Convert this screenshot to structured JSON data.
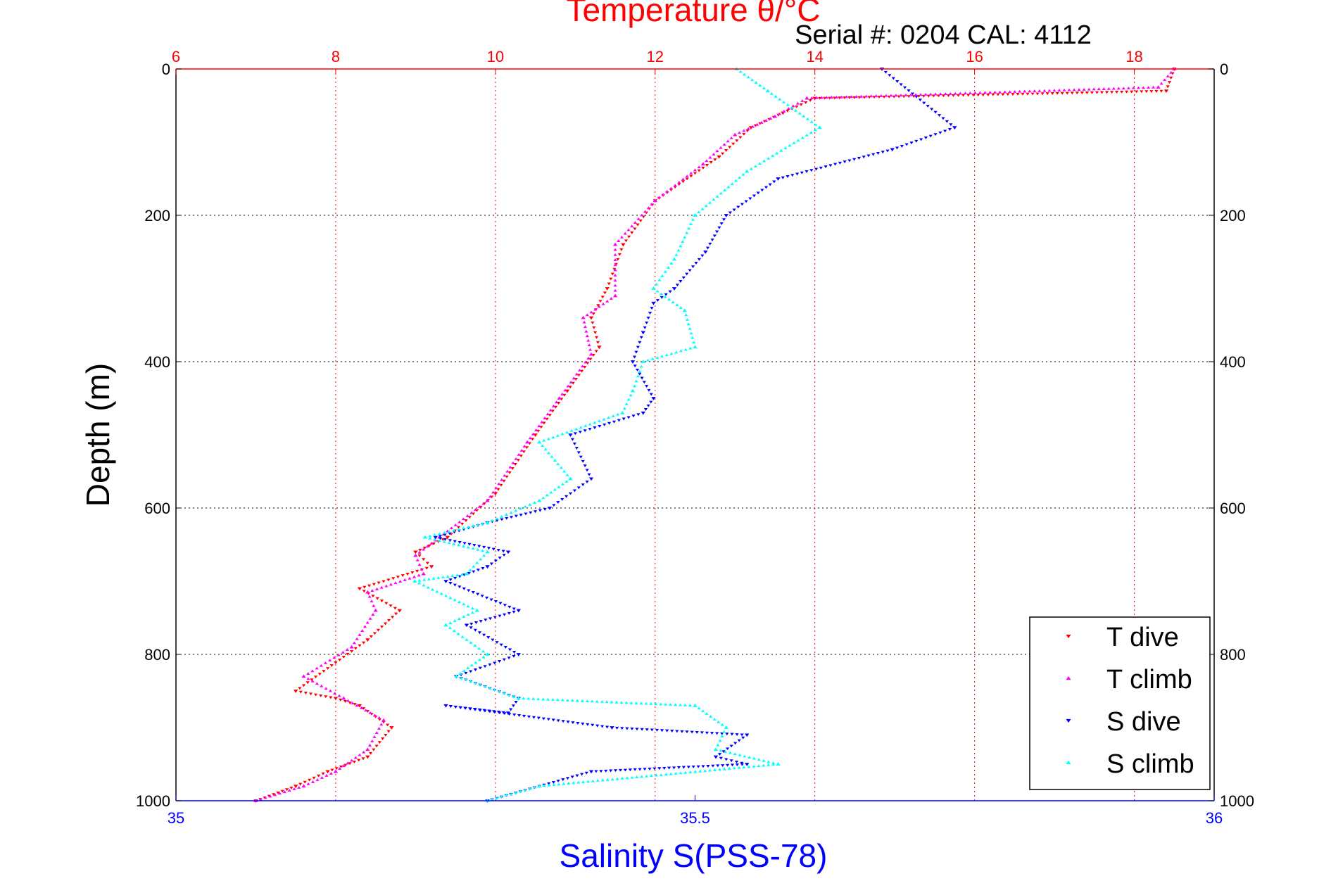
{
  "chart_data": {
    "type": "scatter",
    "title": "Temperature θ/°C",
    "subtitle": "Serial #: 0204  CAL: 4112",
    "ylabel": "Depth (m)",
    "xlabel": "Salinity S(PSS-78)",
    "y_axis": {
      "range": [
        0,
        1000
      ],
      "reversed": true,
      "ticks": [
        0,
        200,
        400,
        600,
        800,
        1000
      ],
      "grid": true
    },
    "x_top_axis": {
      "label": "Temperature θ/°C",
      "range": [
        6,
        19
      ],
      "ticks": [
        6,
        8,
        10,
        12,
        14,
        16,
        18
      ],
      "grid": true,
      "color": "#ff0000"
    },
    "x_bottom_axis": {
      "label": "Salinity S(PSS-78)",
      "range": [
        35,
        36
      ],
      "ticks": [
        35,
        35.5,
        36
      ],
      "color": "#0000ff"
    },
    "legend": {
      "placement": "bottom-right"
    },
    "series": [
      {
        "name": "T dive",
        "axis": "temperature",
        "color": "#ff0000",
        "marker": "triangle-down",
        "x": [
          18.5,
          18.4,
          14.0,
          13.6,
          13.2,
          12.8,
          12.0,
          11.6,
          11.4,
          11.2,
          11.3,
          10.9,
          10.5,
          10.0,
          9.4,
          9.0,
          9.2,
          8.3,
          8.8,
          8.4,
          7.5,
          8.0,
          8.3,
          8.7,
          8.4,
          7.9,
          7.5,
          7.0
        ],
        "y": [
          0,
          30,
          40,
          60,
          80,
          120,
          180,
          240,
          300,
          340,
          380,
          440,
          500,
          580,
          640,
          660,
          680,
          710,
          740,
          780,
          850,
          860,
          870,
          900,
          940,
          960,
          980,
          1000
        ]
      },
      {
        "name": "T climb",
        "axis": "temperature",
        "color": "#ff00ff",
        "marker": "triangle-up",
        "x": [
          18.5,
          18.3,
          13.9,
          13.5,
          13.0,
          12.6,
          12.0,
          11.5,
          11.5,
          11.1,
          11.2,
          10.8,
          10.4,
          9.9,
          9.3,
          9.0,
          9.1,
          8.4,
          8.5,
          8.2,
          7.6,
          8.1,
          8.6,
          8.4,
          8.0,
          7.6,
          7.0
        ],
        "y": [
          0,
          25,
          40,
          65,
          90,
          130,
          180,
          240,
          310,
          340,
          390,
          450,
          510,
          590,
          640,
          665,
          690,
          715,
          740,
          790,
          830,
          860,
          890,
          930,
          960,
          980,
          1000
        ]
      },
      {
        "name": "S dive",
        "axis": "salinity",
        "color": "#0000ff",
        "marker": "triangle-down",
        "x": [
          35.68,
          35.75,
          35.69,
          35.58,
          35.53,
          35.51,
          35.48,
          35.46,
          35.45,
          35.44,
          35.46,
          35.45,
          35.38,
          35.4,
          35.36,
          35.3,
          35.25,
          35.32,
          35.3,
          35.26,
          35.33,
          35.28,
          35.33,
          35.27,
          35.33,
          35.32,
          35.26,
          35.42,
          35.55,
          35.52,
          35.55,
          35.4,
          35.3
        ],
        "y": [
          0,
          80,
          110,
          150,
          200,
          250,
          300,
          320,
          360,
          400,
          450,
          470,
          500,
          560,
          600,
          620,
          640,
          660,
          680,
          700,
          740,
          760,
          800,
          830,
          860,
          880,
          870,
          900,
          910,
          940,
          950,
          960,
          1000
        ]
      },
      {
        "name": "S climb",
        "axis": "salinity",
        "color": "#00ffff",
        "marker": "triangle-up",
        "x": [
          35.54,
          35.57,
          35.62,
          35.55,
          35.5,
          35.48,
          35.46,
          35.49,
          35.5,
          35.45,
          35.44,
          35.43,
          35.35,
          35.38,
          35.35,
          35.3,
          35.24,
          35.3,
          35.28,
          35.23,
          35.29,
          35.26,
          35.3,
          35.27,
          35.33,
          35.5,
          35.53,
          35.52,
          35.58,
          35.35,
          35.3
        ],
        "y": [
          0,
          30,
          80,
          140,
          200,
          260,
          300,
          330,
          380,
          400,
          440,
          470,
          510,
          560,
          590,
          620,
          640,
          660,
          690,
          700,
          740,
          760,
          800,
          830,
          860,
          870,
          900,
          930,
          950,
          980,
          1000
        ]
      }
    ]
  },
  "legend_labels": [
    "T dive",
    "T climb",
    "S dive",
    "S climb"
  ]
}
